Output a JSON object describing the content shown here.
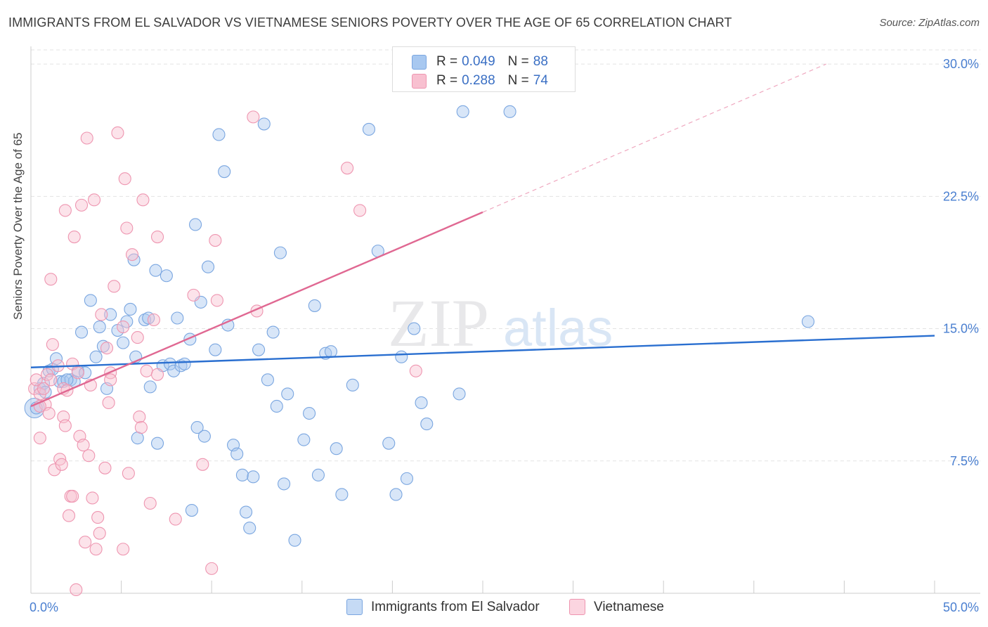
{
  "title": "IMMIGRANTS FROM EL SALVADOR VS VIETNAMESE SENIORS POVERTY OVER THE AGE OF 65 CORRELATION CHART",
  "source": "Source: ZipAtlas.com",
  "watermark": {
    "zip": "ZIP",
    "atlas": "atlas"
  },
  "legend": {
    "r_label": "R =",
    "n_label": "N =",
    "rows": [
      {
        "r": "0.049",
        "n": "88",
        "color": "#a8c8f0",
        "border": "#7aa6e0"
      },
      {
        "r": "0.288",
        "n": "74",
        "color": "#f8c0d0",
        "border": "#ee95b0"
      }
    ]
  },
  "bottom_legend": [
    "Immigrants from El Salvador",
    "Vietnamese"
  ],
  "chart_data": {
    "type": "scatter",
    "title": "IMMIGRANTS FROM EL SALVADOR VS VIETNAMESE SENIORS POVERTY OVER THE AGE OF 65 CORRELATION CHART",
    "xlabel": "",
    "ylabel": "Seniors Poverty Over the Age of 65",
    "xlim": [
      0,
      50
    ],
    "ylim": [
      0,
      31
    ],
    "x_tick_labels": [
      "0.0%",
      "50.0%"
    ],
    "y_ticks": [
      7.5,
      15.0,
      22.5,
      30.0
    ],
    "y_tick_labels": [
      "7.5%",
      "15.0%",
      "22.5%",
      "30.0%"
    ],
    "series": [
      {
        "name": "Immigrants from El Salvador",
        "color": "#7aa6e0",
        "fill": "#a8c8f0",
        "trend": {
          "x": [
            0,
            50
          ],
          "y": [
            12.8,
            14.6
          ],
          "color": "#2a6fd0"
        },
        "points": [
          [
            0.3,
            10.5
          ],
          [
            0.5,
            11.6
          ],
          [
            0.7,
            11.9
          ],
          [
            0.8,
            11.4
          ],
          [
            1.0,
            12.6
          ],
          [
            1.2,
            12.7
          ],
          [
            1.4,
            13.3
          ],
          [
            1.6,
            12.0
          ],
          [
            1.8,
            12.0
          ],
          [
            2.2,
            12.1
          ],
          [
            2.4,
            12.0
          ],
          [
            2.6,
            12.6
          ],
          [
            2.8,
            14.8
          ],
          [
            3.3,
            16.6
          ],
          [
            3.6,
            13.4
          ],
          [
            3.8,
            15.1
          ],
          [
            4.0,
            14.0
          ],
          [
            4.2,
            11.6
          ],
          [
            4.4,
            15.8
          ],
          [
            4.8,
            14.9
          ],
          [
            5.1,
            14.2
          ],
          [
            5.3,
            15.4
          ],
          [
            5.5,
            16.1
          ],
          [
            5.7,
            18.9
          ],
          [
            5.8,
            13.4
          ],
          [
            5.9,
            8.8
          ],
          [
            6.3,
            15.5
          ],
          [
            6.5,
            15.6
          ],
          [
            6.6,
            11.7
          ],
          [
            6.9,
            18.3
          ],
          [
            7.0,
            8.5
          ],
          [
            7.3,
            12.9
          ],
          [
            7.5,
            18.0
          ],
          [
            7.7,
            13.0
          ],
          [
            7.9,
            12.6
          ],
          [
            8.1,
            15.6
          ],
          [
            8.3,
            12.9
          ],
          [
            8.5,
            13.0
          ],
          [
            8.8,
            14.4
          ],
          [
            9.1,
            20.9
          ],
          [
            9.2,
            9.4
          ],
          [
            9.4,
            16.5
          ],
          [
            9.6,
            8.9
          ],
          [
            9.8,
            18.5
          ],
          [
            10.2,
            13.8
          ],
          [
            10.4,
            26.0
          ],
          [
            10.7,
            23.9
          ],
          [
            10.9,
            15.2
          ],
          [
            11.2,
            8.4
          ],
          [
            11.4,
            7.9
          ],
          [
            11.7,
            6.7
          ],
          [
            11.9,
            4.6
          ],
          [
            12.1,
            3.7
          ],
          [
            12.3,
            6.6
          ],
          [
            12.6,
            13.8
          ],
          [
            12.9,
            26.6
          ],
          [
            13.1,
            12.1
          ],
          [
            13.4,
            14.8
          ],
          [
            13.6,
            10.6
          ],
          [
            13.8,
            19.3
          ],
          [
            14.0,
            6.2
          ],
          [
            14.2,
            11.3
          ],
          [
            14.6,
            3.0
          ],
          [
            15.1,
            8.7
          ],
          [
            15.4,
            10.2
          ],
          [
            15.7,
            16.3
          ],
          [
            15.9,
            6.7
          ],
          [
            16.3,
            13.6
          ],
          [
            16.6,
            13.7
          ],
          [
            16.9,
            8.2
          ],
          [
            17.2,
            5.6
          ],
          [
            17.8,
            11.8
          ],
          [
            18.7,
            26.3
          ],
          [
            19.2,
            19.4
          ],
          [
            19.8,
            8.5
          ],
          [
            20.2,
            5.6
          ],
          [
            20.5,
            13.4
          ],
          [
            20.8,
            6.5
          ],
          [
            21.2,
            15.0
          ],
          [
            21.6,
            10.8
          ],
          [
            21.9,
            9.6
          ],
          [
            23.7,
            11.3
          ],
          [
            23.9,
            27.3
          ],
          [
            26.5,
            27.3
          ],
          [
            43.0,
            15.4
          ],
          [
            8.9,
            4.7
          ],
          [
            2.0,
            12.1
          ],
          [
            3.0,
            12.5
          ]
        ]
      },
      {
        "name": "Vietnamese",
        "color": "#ee95b0",
        "fill": "#f8c0d0",
        "trend": {
          "x": [
            0,
            25
          ],
          "y": [
            10.6,
            21.6
          ],
          "color": "#e06892"
        },
        "trend_dashed": {
          "x": [
            25,
            44
          ],
          "y": [
            21.6,
            30.0
          ]
        },
        "points": [
          [
            0.2,
            11.6
          ],
          [
            0.3,
            12.1
          ],
          [
            0.5,
            8.8
          ],
          [
            0.5,
            11.3
          ],
          [
            0.7,
            11.6
          ],
          [
            0.8,
            10.7
          ],
          [
            0.9,
            12.4
          ],
          [
            1.0,
            10.2
          ],
          [
            1.1,
            12.1
          ],
          [
            1.1,
            17.8
          ],
          [
            1.2,
            14.1
          ],
          [
            1.3,
            7.0
          ],
          [
            1.5,
            12.9
          ],
          [
            1.6,
            7.6
          ],
          [
            1.7,
            7.3
          ],
          [
            1.8,
            11.6
          ],
          [
            1.8,
            10.0
          ],
          [
            1.9,
            21.7
          ],
          [
            1.9,
            9.5
          ],
          [
            2.0,
            11.5
          ],
          [
            2.1,
            4.4
          ],
          [
            2.2,
            5.5
          ],
          [
            2.3,
            5.5
          ],
          [
            2.3,
            13.0
          ],
          [
            2.4,
            20.2
          ],
          [
            2.6,
            12.5
          ],
          [
            2.7,
            8.9
          ],
          [
            2.8,
            22.0
          ],
          [
            2.9,
            8.4
          ],
          [
            3.0,
            2.9
          ],
          [
            3.1,
            25.8
          ],
          [
            3.2,
            7.8
          ],
          [
            3.3,
            11.8
          ],
          [
            3.4,
            5.4
          ],
          [
            3.5,
            22.3
          ],
          [
            3.6,
            2.5
          ],
          [
            3.7,
            4.3
          ],
          [
            3.8,
            3.4
          ],
          [
            3.9,
            15.8
          ],
          [
            4.1,
            7.1
          ],
          [
            4.2,
            13.9
          ],
          [
            4.3,
            10.8
          ],
          [
            4.4,
            12.5
          ],
          [
            4.4,
            12.1
          ],
          [
            4.6,
            17.4
          ],
          [
            4.8,
            26.1
          ],
          [
            5.1,
            15.1
          ],
          [
            5.1,
            2.5
          ],
          [
            5.2,
            23.5
          ],
          [
            5.3,
            20.7
          ],
          [
            5.4,
            6.8
          ],
          [
            5.6,
            19.2
          ],
          [
            5.9,
            14.5
          ],
          [
            6.0,
            10.0
          ],
          [
            6.1,
            9.4
          ],
          [
            6.2,
            22.3
          ],
          [
            6.4,
            12.6
          ],
          [
            6.6,
            5.1
          ],
          [
            6.8,
            15.5
          ],
          [
            7.0,
            12.4
          ],
          [
            7.0,
            20.2
          ],
          [
            8.0,
            4.2
          ],
          [
            9.0,
            16.9
          ],
          [
            9.5,
            7.3
          ],
          [
            10.0,
            1.4
          ],
          [
            10.2,
            20.0
          ],
          [
            10.3,
            16.6
          ],
          [
            12.3,
            27.0
          ],
          [
            12.5,
            16.0
          ],
          [
            17.5,
            24.1
          ],
          [
            18.2,
            21.7
          ],
          [
            21.3,
            12.6
          ],
          [
            0.5,
            10.6
          ],
          [
            2.5,
            0.2
          ]
        ]
      }
    ]
  }
}
